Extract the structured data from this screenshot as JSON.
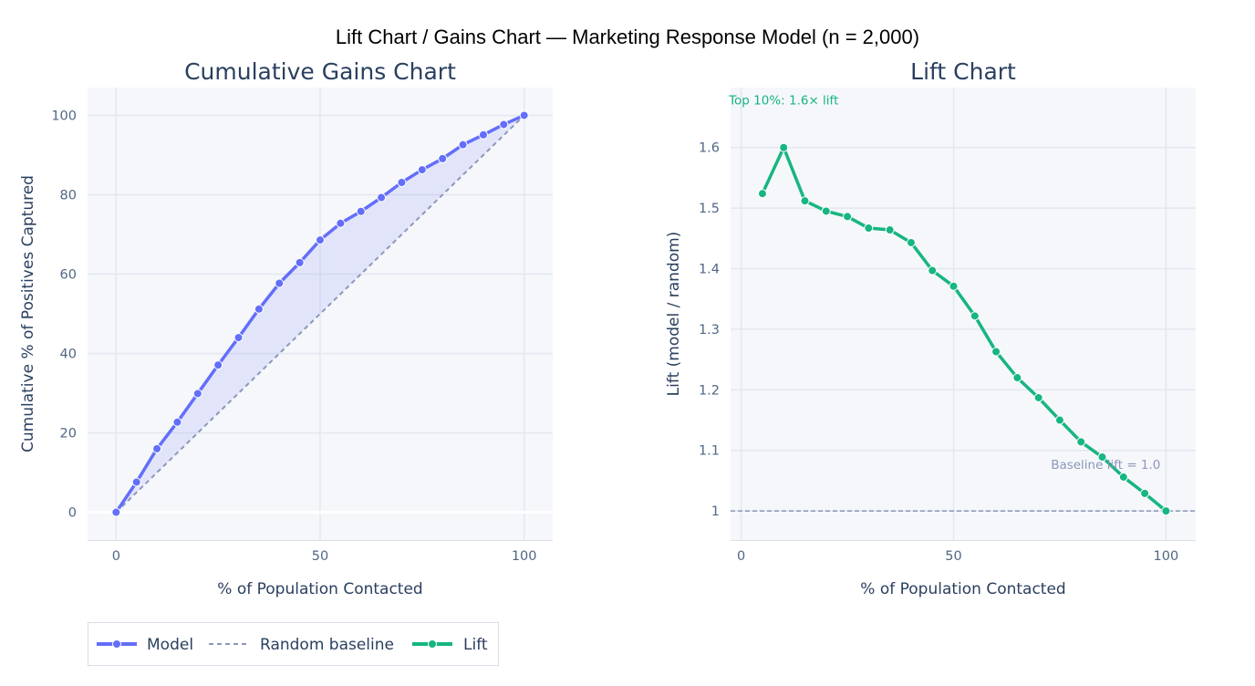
{
  "figure_title": "Lift Chart / Gains Chart — Marketing Response Model (n = 2,000)",
  "colors": {
    "model": "#636efa",
    "model_fill": "rgba(99,110,250,0.13)",
    "baseline": "#8c98b8",
    "lift": "#17b581",
    "plot_bg": "#f5f7fb",
    "grid": "#e3e7ef",
    "text": "#2a3f5f",
    "tick": "#506784"
  },
  "legend": {
    "items": [
      {
        "label": "Model",
        "key": "model"
      },
      {
        "label": "Random baseline",
        "key": "baseline"
      },
      {
        "label": "Lift",
        "key": "lift"
      }
    ]
  },
  "chart_data": [
    {
      "type": "line",
      "title": "Cumulative Gains Chart",
      "xlabel": "% of Population Contacted",
      "ylabel": "Cumulative % of Positives Captured",
      "xlim": [
        -7,
        107
      ],
      "ylim": [
        -7,
        107
      ],
      "xticks": [
        0,
        50,
        100
      ],
      "yticks": [
        0,
        20,
        40,
        60,
        80,
        100
      ],
      "grid": true,
      "series": [
        {
          "name": "Model",
          "mode": "lines+markers",
          "fill": "tonexty",
          "x": [
            0,
            5,
            10,
            15,
            20,
            25,
            30,
            35,
            40,
            45,
            50,
            55,
            60,
            65,
            70,
            75,
            80,
            85,
            90,
            95,
            100
          ],
          "y": [
            0,
            7.6,
            16.0,
            22.7,
            29.9,
            37.1,
            44.0,
            51.2,
            57.7,
            62.9,
            68.6,
            72.8,
            75.8,
            79.3,
            83.1,
            86.3,
            89.1,
            92.6,
            95.1,
            97.7,
            100
          ]
        },
        {
          "name": "Random baseline",
          "mode": "lines",
          "dash": "dash",
          "x": [
            0,
            100
          ],
          "y": [
            0,
            100
          ]
        }
      ]
    },
    {
      "type": "line",
      "title": "Lift Chart",
      "xlabel": "% of Population Contacted",
      "ylabel": "Lift (model / random)",
      "xlim": [
        -2.5,
        107
      ],
      "ylim": [
        0.952,
        1.699
      ],
      "xticks": [
        0,
        50,
        100
      ],
      "yticks": [
        1,
        1.1,
        1.2,
        1.3,
        1.4,
        1.5,
        1.6
      ],
      "ytick_labels": [
        "1",
        "1.1",
        "1.2",
        "1.3",
        "1.4",
        "1.5",
        "1.6"
      ],
      "grid": true,
      "series": [
        {
          "name": "Lift",
          "mode": "lines+markers",
          "x": [
            5,
            10,
            15,
            20,
            25,
            30,
            35,
            40,
            45,
            50,
            55,
            60,
            65,
            70,
            75,
            80,
            85,
            90,
            95,
            100
          ],
          "y": [
            1.524,
            1.6,
            1.512,
            1.495,
            1.486,
            1.467,
            1.464,
            1.443,
            1.397,
            1.371,
            1.322,
            1.263,
            1.22,
            1.187,
            1.15,
            1.114,
            1.089,
            1.056,
            1.029,
            1.0
          ]
        }
      ],
      "reference_line": {
        "y": 1.0,
        "dash": "dash"
      },
      "annotations": [
        {
          "text": "Top 10%: 1.6× lift",
          "x": 10,
          "y": 1.679,
          "color_key": "lift"
        },
        {
          "text": "Baseline lift = 1.0",
          "x": 100,
          "y": 1.077,
          "color_key": "baseline"
        }
      ]
    }
  ]
}
